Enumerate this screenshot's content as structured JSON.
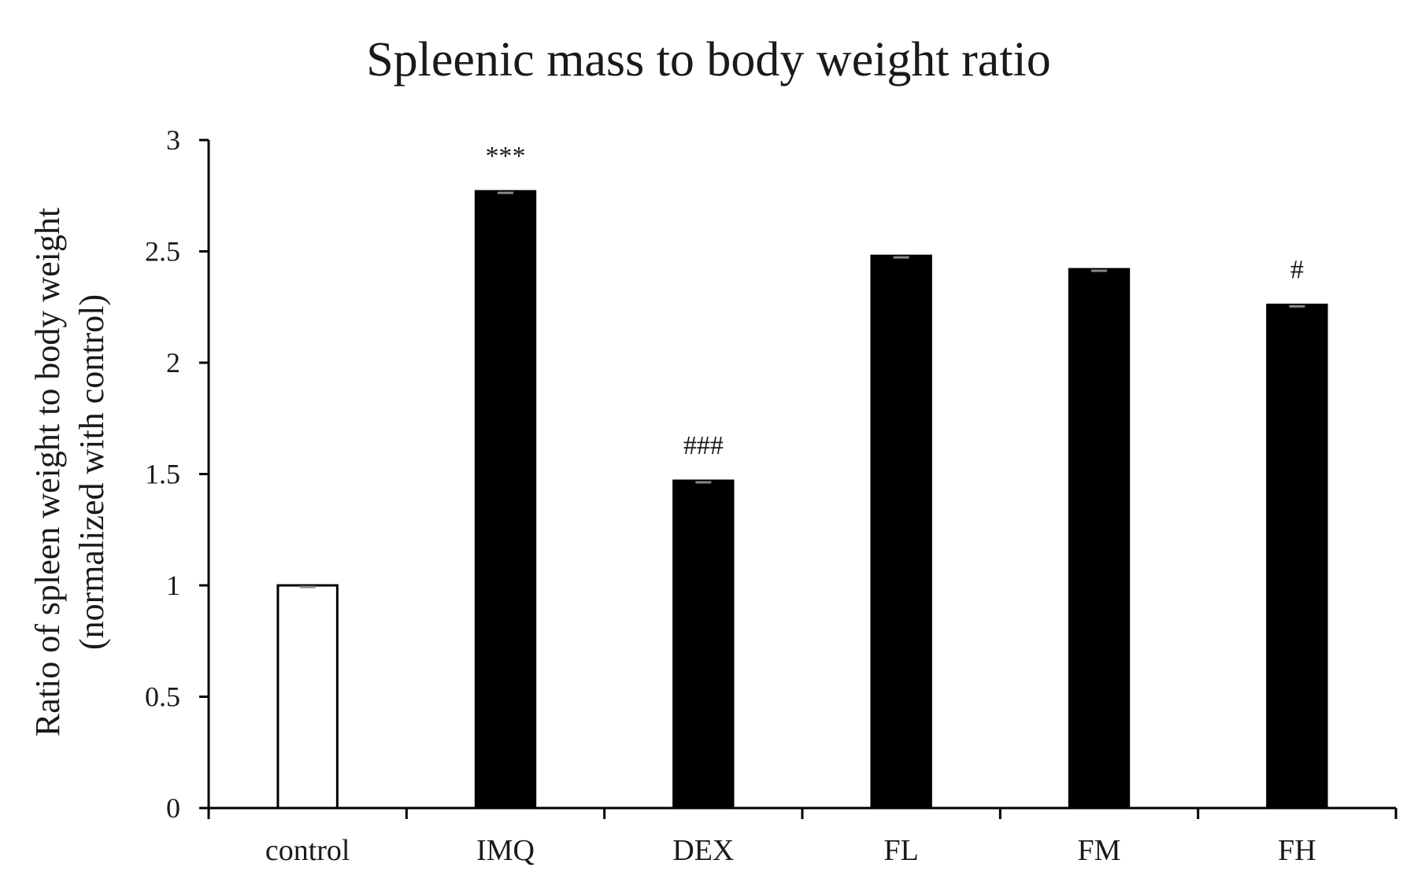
{
  "chart_data": {
    "type": "bar",
    "title": "Spleenic mass to body weight ratio",
    "ylabel_line1": "Ratio of spleen weight to body weight",
    "ylabel_line2": "(normalized with control)",
    "xlabel": "",
    "ylim": [
      0,
      3
    ],
    "yticks": [
      0,
      0.5,
      1,
      1.5,
      2,
      2.5,
      3
    ],
    "ytick_labels": [
      "0",
      "0.5",
      "1",
      "1.5",
      "2",
      "2.5",
      "3"
    ],
    "categories": [
      "control",
      "IMQ",
      "DEX",
      "FL",
      "FM",
      "FH"
    ],
    "values": [
      1.0,
      2.77,
      1.47,
      2.48,
      2.42,
      2.26
    ],
    "annotations": [
      "",
      "***",
      "###",
      "",
      "",
      "#"
    ],
    "colors": [
      "#ffffff",
      "#000000",
      "#000000",
      "#000000",
      "#000000",
      "#000000"
    ],
    "grid": false,
    "legend": "none"
  }
}
